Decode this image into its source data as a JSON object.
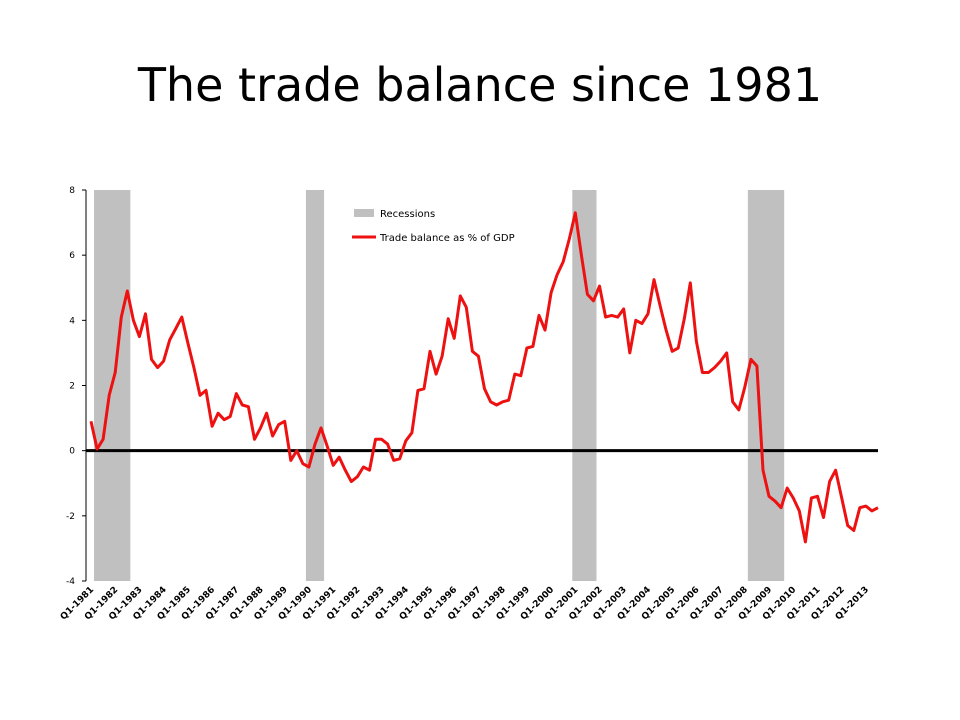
{
  "title": "The trade balance since 1981",
  "chart_data": {
    "type": "line",
    "title": "The trade balance since 1981",
    "xlabel": "",
    "ylabel": "",
    "ylim": [
      -4,
      8
    ],
    "yticks": [
      -4,
      -2,
      0,
      2,
      4,
      6,
      8
    ],
    "grid": false,
    "legend_position": "top-center",
    "x_ticks": [
      "Q1-1981",
      "Q1-1982",
      "Q1-1983",
      "Q1-1984",
      "Q1-1985",
      "Q1-1986",
      "Q1-1987",
      "Q1-1988",
      "Q1-1989",
      "Q1-1990",
      "Q1-1991",
      "Q1-1992",
      "Q1-1993",
      "Q1-1994",
      "Q1-1995",
      "Q1-1996",
      "Q1-1997",
      "Q1-1998",
      "Q1-1999",
      "Q1-2000",
      "Q1-2001",
      "Q1-2002",
      "Q1-2003",
      "Q1-2004",
      "Q1-2005",
      "Q1-2006",
      "Q1-2007",
      "Q1-2008",
      "Q1-2009",
      "Q1-2010",
      "Q1-2011",
      "Q1-2012",
      "Q1-2013"
    ],
    "recessions": [
      {
        "start": "Q2-1981",
        "end": "Q3-1982"
      },
      {
        "start": "Q1-1990",
        "end": "Q3-1990"
      },
      {
        "start": "Q1-2001",
        "end": "Q4-2001"
      },
      {
        "start": "Q2-2008",
        "end": "Q3-2009"
      }
    ],
    "series": [
      {
        "name": "Trade balance as % of GDP",
        "color": "#ee1111",
        "start": "Q1-1981",
        "values": [
          0.9,
          0.05,
          0.35,
          1.7,
          2.4,
          4.1,
          4.9,
          4.0,
          3.5,
          4.2,
          2.8,
          2.55,
          2.75,
          3.4,
          3.75,
          4.1,
          3.3,
          2.55,
          1.7,
          1.85,
          0.75,
          1.15,
          0.95,
          1.05,
          1.75,
          1.4,
          1.35,
          0.35,
          0.7,
          1.15,
          0.45,
          0.8,
          0.9,
          -0.3,
          0.0,
          -0.4,
          -0.5,
          0.2,
          0.7,
          0.15,
          -0.45,
          -0.2,
          -0.6,
          -0.95,
          -0.8,
          -0.5,
          -0.6,
          0.35,
          0.35,
          0.2,
          -0.3,
          -0.25,
          0.3,
          0.55,
          1.85,
          1.9,
          3.05,
          2.35,
          2.9,
          4.05,
          3.45,
          4.75,
          4.4,
          3.05,
          2.9,
          1.9,
          1.5,
          1.4,
          1.5,
          1.55,
          2.35,
          2.3,
          3.15,
          3.2,
          4.15,
          3.7,
          4.85,
          5.4,
          5.8,
          6.5,
          7.3,
          6.0,
          4.8,
          4.6,
          5.05,
          4.1,
          4.15,
          4.1,
          4.35,
          3.0,
          4.0,
          3.9,
          4.2,
          5.25,
          4.45,
          3.7,
          3.05,
          3.15,
          4.05,
          5.15,
          3.35,
          2.4,
          2.4,
          2.55,
          2.75,
          3.0,
          1.5,
          1.25,
          1.95,
          2.8,
          2.6,
          -0.6,
          -1.4,
          -1.55,
          -1.75,
          -1.15,
          -1.45,
          -1.85,
          -2.8,
          -1.45,
          -1.4,
          -2.05,
          -0.95,
          -0.6,
          -1.45,
          -2.3,
          -2.45,
          -1.75,
          -1.7,
          -1.85,
          -1.75
        ]
      }
    ],
    "legend": {
      "recessions_label": "Recessions",
      "recessions_color": "#c0c0c0",
      "line_label": "Trade balance as % of GDP",
      "line_color": "#ee1111"
    }
  }
}
